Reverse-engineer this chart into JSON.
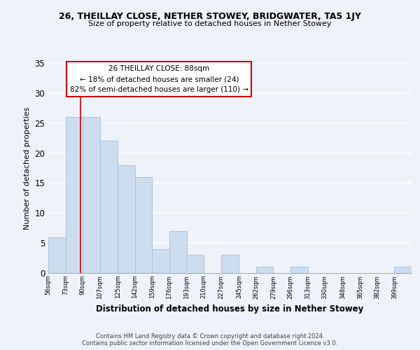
{
  "title": "26, THEILLAY CLOSE, NETHER STOWEY, BRIDGWATER, TA5 1JY",
  "subtitle": "Size of property relative to detached houses in Nether Stowey",
  "xlabel": "Distribution of detached houses by size in Nether Stowey",
  "ylabel": "Number of detached properties",
  "bin_labels": [
    "56sqm",
    "73sqm",
    "90sqm",
    "107sqm",
    "125sqm",
    "142sqm",
    "159sqm",
    "176sqm",
    "193sqm",
    "210sqm",
    "227sqm",
    "245sqm",
    "262sqm",
    "279sqm",
    "296sqm",
    "313sqm",
    "330sqm",
    "348sqm",
    "365sqm",
    "382sqm",
    "399sqm"
  ],
  "bin_edges": [
    56,
    73,
    90,
    107,
    125,
    142,
    159,
    176,
    193,
    210,
    227,
    245,
    262,
    279,
    296,
    313,
    330,
    348,
    365,
    382,
    399,
    416
  ],
  "bar_heights": [
    6,
    26,
    26,
    22,
    18,
    16,
    4,
    7,
    3,
    0,
    3,
    0,
    1,
    0,
    1,
    0,
    0,
    0,
    0,
    0,
    1
  ],
  "bar_color": "#ccddf0",
  "bar_edge_color": "#aac4e0",
  "property_line_x": 88,
  "property_line_color": "#cc0000",
  "annotation_line1": "26 THEILLAY CLOSE: 88sqm",
  "annotation_line2": "← 18% of detached houses are smaller (24)",
  "annotation_line3": "82% of semi-detached houses are larger (110) →",
  "annotation_box_edge": "#cc0000",
  "ylim": [
    0,
    35
  ],
  "yticks": [
    0,
    5,
    10,
    15,
    20,
    25,
    30,
    35
  ],
  "bg_color": "#eef2fa",
  "grid_color": "#ffffff",
  "footer_line1": "Contains HM Land Registry data © Crown copyright and database right 2024.",
  "footer_line2": "Contains public sector information licensed under the Open Government Licence v3.0."
}
